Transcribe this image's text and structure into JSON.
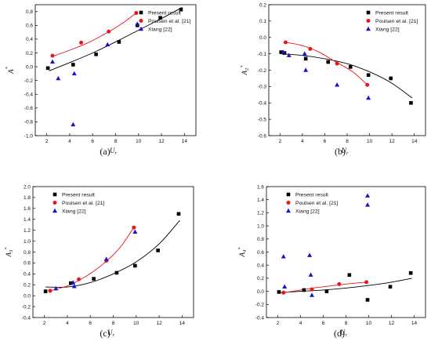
{
  "colors": {
    "present": "#000000",
    "poulsen": "#e8151b",
    "xiang": "#1414cc",
    "axis": "#000000"
  },
  "chart_data": [
    {
      "type": "scatter",
      "panel_label": "(a)",
      "xlabel": "U_r",
      "ylabel": "A_1^*",
      "xlabel_main": "U",
      "xlabel_sub": "r",
      "ylabel_main": "A",
      "ylabel_sub": "",
      "ylabel_sup": "*",
      "xlim": [
        1,
        15
      ],
      "ylim": [
        -1.0,
        0.9
      ],
      "xticks": [
        2,
        4,
        6,
        8,
        10,
        12,
        14
      ],
      "yticks": [
        -1.0,
        -0.8,
        -0.6,
        -0.4,
        -0.2,
        0.0,
        0.2,
        0.4,
        0.6,
        0.8
      ],
      "ytick_labels": [
        "-1.0",
        "-0.8",
        "-0.6",
        "-0.4",
        "-0.2",
        "0.0",
        "0.2",
        "0.4",
        "0.6",
        "0.8"
      ],
      "legend": "top-right",
      "series": [
        {
          "name": "Present result",
          "marker": "square",
          "color": "#000000",
          "points": [
            [
              2.1,
              -0.02
            ],
            [
              4.3,
              0.03
            ],
            [
              6.3,
              0.18
            ],
            [
              8.3,
              0.36
            ],
            [
              9.9,
              0.6
            ],
            [
              11.9,
              0.71
            ],
            [
              13.7,
              0.83
            ]
          ],
          "fit": [
            [
              2.2,
              -0.06
            ],
            [
              4,
              0.06
            ],
            [
              6,
              0.2
            ],
            [
              8,
              0.36
            ],
            [
              10,
              0.53
            ],
            [
              12,
              0.7
            ],
            [
              13.8,
              0.86
            ]
          ]
        },
        {
          "name": "Poulsen et al. [21]",
          "marker": "circle",
          "color": "#e8151b",
          "points": [
            [
              2.5,
              0.16
            ],
            [
              5,
              0.35
            ],
            [
              7.4,
              0.51
            ],
            [
              9.8,
              0.78
            ]
          ],
          "fit": [
            [
              2.5,
              0.15
            ],
            [
              4,
              0.24
            ],
            [
              5.5,
              0.34
            ],
            [
              7,
              0.47
            ],
            [
              8.5,
              0.62
            ],
            [
              9.8,
              0.78
            ]
          ]
        },
        {
          "name": "Xiang [22]",
          "marker": "triangle",
          "color": "#1414cc",
          "points": [
            [
              2.5,
              0.07
            ],
            [
              3,
              -0.17
            ],
            [
              4.3,
              -0.84
            ],
            [
              4.4,
              -0.1
            ],
            [
              7.3,
              0.32
            ],
            [
              9.9,
              0.62
            ]
          ]
        }
      ]
    },
    {
      "type": "scatter",
      "panel_label": "(b)",
      "xlabel": "U_r",
      "ylabel": "A_2^*",
      "xlabel_main": "U",
      "xlabel_sub": "r",
      "ylabel_main": "A",
      "ylabel_sub": "2",
      "ylabel_sup": "*",
      "xlim": [
        1,
        15
      ],
      "ylim": [
        -0.6,
        0.2
      ],
      "xticks": [
        2,
        4,
        6,
        8,
        10,
        12,
        14
      ],
      "yticks": [
        -0.6,
        -0.5,
        -0.4,
        -0.3,
        -0.2,
        -0.1,
        0.0,
        0.1,
        0.2
      ],
      "ytick_labels": [
        "-0.6",
        "-0.5",
        "-0.4",
        "-0.3",
        "-0.2",
        "-0.1",
        "0.0",
        "0.1",
        "0.2"
      ],
      "legend": "top-right",
      "series": [
        {
          "name": "Present result",
          "marker": "square",
          "color": "#000000",
          "points": [
            [
              2.1,
              -0.09
            ],
            [
              2.4,
              -0.095
            ],
            [
              4.3,
              -0.13
            ],
            [
              6.3,
              -0.15
            ],
            [
              8.3,
              -0.18
            ],
            [
              9.9,
              -0.23
            ],
            [
              11.9,
              -0.25
            ],
            [
              13.7,
              -0.4
            ]
          ],
          "fit": [
            [
              2.1,
              -0.1
            ],
            [
              4,
              -0.11
            ],
            [
              6,
              -0.13
            ],
            [
              8,
              -0.16
            ],
            [
              10,
              -0.21
            ],
            [
              12,
              -0.28
            ],
            [
              13.8,
              -0.37
            ]
          ]
        },
        {
          "name": "Poulsen et al. [21]",
          "marker": "circle",
          "color": "#e8151b",
          "points": [
            [
              2.5,
              -0.03
            ],
            [
              4.7,
              -0.07
            ],
            [
              7.1,
              -0.16
            ],
            [
              9.8,
              -0.29
            ]
          ],
          "fit": [
            [
              2.5,
              -0.03
            ],
            [
              4,
              -0.05
            ],
            [
              5.5,
              -0.09
            ],
            [
              7,
              -0.15
            ],
            [
              8.5,
              -0.21
            ],
            [
              9.8,
              -0.29
            ]
          ]
        },
        {
          "name": "Xiang [22]",
          "marker": "triangle",
          "color": "#1414cc",
          "points": [
            [
              2.3,
              -0.09
            ],
            [
              2.8,
              -0.11
            ],
            [
              4.2,
              -0.1
            ],
            [
              4.3,
              -0.2
            ],
            [
              7.1,
              -0.29
            ],
            [
              9.9,
              -0.37
            ]
          ]
        }
      ]
    },
    {
      "type": "scatter",
      "panel_label": "(c)",
      "xlabel": "U_r",
      "ylabel": "A_3^*",
      "xlabel_main": "U",
      "xlabel_sub": "r",
      "ylabel_main": "A",
      "ylabel_sub": "3",
      "ylabel_sup": "*",
      "xlim": [
        1,
        15
      ],
      "ylim": [
        -0.4,
        2.0
      ],
      "xticks": [
        2,
        4,
        6,
        8,
        10,
        12,
        14
      ],
      "yticks": [
        -0.4,
        -0.2,
        0.0,
        0.2,
        0.4,
        0.6,
        0.8,
        1.0,
        1.2,
        1.4,
        1.6,
        1.8,
        2.0
      ],
      "ytick_labels": [
        "-0.4",
        "-0.2",
        "0.0",
        "0.2",
        "0.4",
        "0.6",
        "0.8",
        "1.0",
        "1.2",
        "1.4",
        "1.6",
        "1.8",
        "2.0"
      ],
      "legend": "top-left",
      "series": [
        {
          "name": "Present result",
          "marker": "square",
          "color": "#000000",
          "points": [
            [
              2.1,
              0.08
            ],
            [
              4.3,
              0.23
            ],
            [
              6.3,
              0.31
            ],
            [
              8.3,
              0.42
            ],
            [
              9.9,
              0.55
            ],
            [
              11.9,
              0.83
            ],
            [
              13.7,
              1.5
            ]
          ],
          "fit": [
            [
              2.1,
              0.16
            ],
            [
              4,
              0.16
            ],
            [
              6,
              0.24
            ],
            [
              8,
              0.4
            ],
            [
              10,
              0.62
            ],
            [
              12,
              0.95
            ],
            [
              13.8,
              1.38
            ]
          ]
        },
        {
          "name": "Poulsen et al. [21]",
          "marker": "circle",
          "color": "#e8151b",
          "points": [
            [
              2.5,
              0.09
            ],
            [
              5,
              0.3
            ],
            [
              7.4,
              0.64
            ],
            [
              9.8,
              1.25
            ]
          ],
          "fit": [
            [
              2.5,
              0.09
            ],
            [
              4,
              0.18
            ],
            [
              5.5,
              0.34
            ],
            [
              7,
              0.56
            ],
            [
              8.5,
              0.86
            ],
            [
              9.8,
              1.25
            ]
          ]
        },
        {
          "name": "Xiang [22]",
          "marker": "triangle",
          "color": "#1414cc",
          "points": [
            [
              3,
              0.13
            ],
            [
              4.5,
              0.24
            ],
            [
              4.6,
              0.17
            ],
            [
              7.4,
              0.67
            ],
            [
              9.9,
              1.17
            ]
          ]
        }
      ]
    },
    {
      "type": "scatter",
      "panel_label": "(d)",
      "xlabel": "U_r",
      "ylabel": "A_4^*",
      "xlabel_main": "U",
      "xlabel_sub": "r",
      "ylabel_main": "A",
      "ylabel_sub": "4",
      "ylabel_sup": "*",
      "xlim": [
        1,
        15
      ],
      "ylim": [
        -0.4,
        1.6
      ],
      "xticks": [
        2,
        4,
        6,
        8,
        10,
        12,
        14
      ],
      "yticks": [
        -0.4,
        -0.2,
        0.0,
        0.2,
        0.4,
        0.6,
        0.8,
        1.0,
        1.2,
        1.4,
        1.6
      ],
      "ytick_labels": [
        "-0.4",
        "-0.2",
        "0.0",
        "0.2",
        "0.4",
        "0.6",
        "0.8",
        "1.0",
        "1.2",
        "1.4",
        "1.6"
      ],
      "legend": "top-left",
      "series": [
        {
          "name": "Present result",
          "marker": "square",
          "color": "#000000",
          "points": [
            [
              2.1,
              -0.01
            ],
            [
              4.3,
              0.02
            ],
            [
              6.3,
              0.0
            ],
            [
              8.3,
              0.25
            ],
            [
              9.9,
              -0.13
            ],
            [
              11.9,
              0.07
            ],
            [
              13.7,
              0.28
            ]
          ],
          "fit": [
            [
              2.1,
              -0.02
            ],
            [
              4,
              0.0
            ],
            [
              6,
              0.02
            ],
            [
              8,
              0.05
            ],
            [
              10,
              0.09
            ],
            [
              12,
              0.14
            ],
            [
              13.8,
              0.2
            ]
          ]
        },
        {
          "name": "Poulsen et al. [21]",
          "marker": "circle",
          "color": "#e8151b",
          "points": [
            [
              2.5,
              -0.02
            ],
            [
              5,
              0.03
            ],
            [
              7.4,
              0.11
            ],
            [
              9.8,
              0.14
            ]
          ],
          "fit": [
            [
              2.5,
              -0.02
            ],
            [
              4,
              0.02
            ],
            [
              5.5,
              0.06
            ],
            [
              7,
              0.09
            ],
            [
              8.5,
              0.12
            ],
            [
              9.8,
              0.14
            ]
          ]
        },
        {
          "name": "Xiang [22]",
          "marker": "triangle",
          "color": "#1414cc",
          "points": [
            [
              2.5,
              0.53
            ],
            [
              2.6,
              0.07
            ],
            [
              4.8,
              0.55
            ],
            [
              4.9,
              0.25
            ],
            [
              5,
              -0.06
            ],
            [
              9.9,
              1.46
            ],
            [
              9.9,
              1.32
            ]
          ]
        }
      ]
    }
  ]
}
